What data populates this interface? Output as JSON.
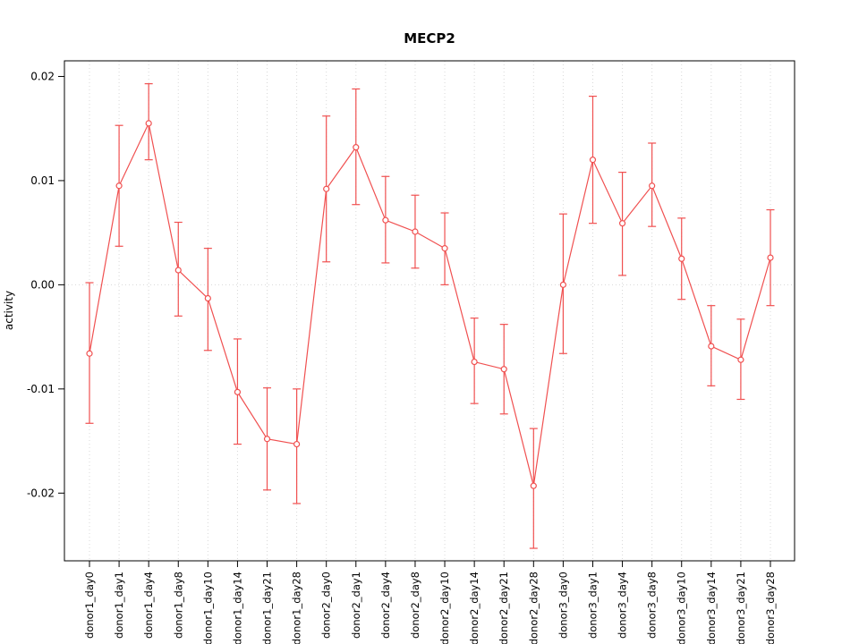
{
  "chart_data": {
    "type": "line",
    "title": "MECP2",
    "xlabel": "",
    "ylabel": "activity",
    "ylim": [
      -0.0265,
      0.0215
    ],
    "yticks": [
      -0.02,
      -0.01,
      0,
      0.01,
      0.02
    ],
    "ytick_labels": [
      "-0.02",
      "-0.01",
      "0.00",
      "0.01",
      "0.02"
    ],
    "grid": "dotted vertical line at each category; dotted horizontal line at y=0",
    "legend": "none",
    "marker": "open-circle",
    "error_bars": true,
    "colors": {
      "series": "#f05050",
      "grid": "#d8d8d8",
      "axis": "#000000"
    },
    "categories": [
      "donor1_day0",
      "donor1_day1",
      "donor1_day4",
      "donor1_day8",
      "donor1_day10",
      "donor1_day14",
      "donor1_day21",
      "donor1_day28",
      "donor2_day0",
      "donor2_day1",
      "donor2_day4",
      "donor2_day8",
      "donor2_day10",
      "donor2_day14",
      "donor2_day21",
      "donor2_day28",
      "donor3_day0",
      "donor3_day1",
      "donor3_day4",
      "donor3_day8",
      "donor3_day10",
      "donor3_day14",
      "donor3_day21",
      "donor3_day28"
    ],
    "series": [
      {
        "name": "activity",
        "values": [
          -0.0066,
          0.0095,
          0.0155,
          0.0014,
          -0.0013,
          -0.0103,
          -0.0148,
          -0.0153,
          0.0092,
          0.0132,
          0.0062,
          0.0051,
          0.0035,
          -0.0074,
          -0.0081,
          -0.0193,
          0.0,
          0.012,
          0.0059,
          0.0095,
          0.0025,
          -0.0059,
          -0.0072,
          0.0026
        ],
        "error_low": [
          -0.0133,
          0.0037,
          0.012,
          -0.003,
          -0.0063,
          -0.0153,
          -0.0197,
          -0.021,
          0.0022,
          0.0077,
          0.0021,
          0.0016,
          0.0,
          -0.0114,
          -0.0124,
          -0.0253,
          -0.0066,
          0.0059,
          0.0009,
          0.0056,
          -0.0014,
          -0.0097,
          -0.011,
          -0.002
        ],
        "error_high": [
          0.0002,
          0.0153,
          0.0193,
          0.006,
          0.0035,
          -0.0052,
          -0.0099,
          -0.01,
          0.0162,
          0.0188,
          0.0104,
          0.0086,
          0.0069,
          -0.0032,
          -0.0038,
          -0.0138,
          0.0068,
          0.0181,
          0.0108,
          0.0136,
          0.0064,
          -0.002,
          -0.0033,
          0.0072
        ]
      }
    ]
  }
}
